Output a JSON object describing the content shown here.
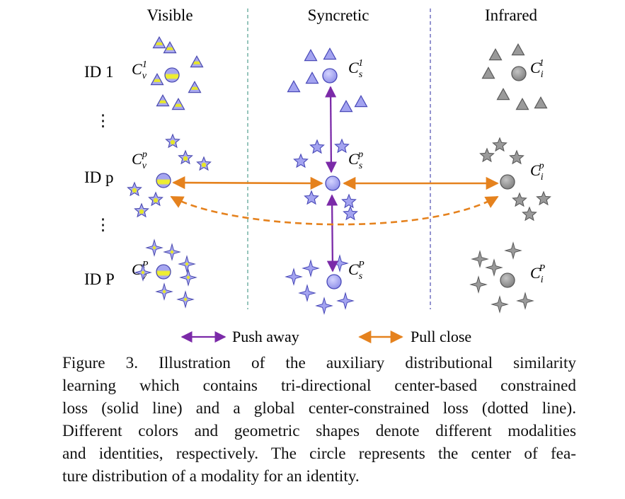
{
  "columns": {
    "visible": "Visible",
    "syncretic": "Syncretic",
    "infrared": "Infrared"
  },
  "rows": {
    "id_1": "ID 1",
    "id_p": "ID p",
    "id_P": "ID P",
    "ellipsis": "⋮"
  },
  "centers": {
    "v1": {
      "base": "C",
      "sup": "1",
      "sub": "v"
    },
    "s1": {
      "base": "C",
      "sup": "1",
      "sub": "s"
    },
    "i1": {
      "base": "C",
      "sup": "1",
      "sub": "i"
    },
    "vp": {
      "base": "C",
      "sup": "p",
      "sub": "v"
    },
    "sp": {
      "base": "C",
      "sup": "p",
      "sub": "s"
    },
    "ip": {
      "base": "C",
      "sup": "p",
      "sub": "i"
    },
    "vP": {
      "base": "C",
      "sup": "P",
      "sub": "v"
    },
    "sP": {
      "base": "C",
      "sup": "P",
      "sub": "s"
    },
    "iP": {
      "base": "C",
      "sup": "P",
      "sub": "i"
    }
  },
  "legend": {
    "push": "Push away",
    "pull": "Pull close"
  },
  "colors": {
    "visible_fill": "#a9a9ee",
    "visible_accent": "#e6e62a",
    "visible_stroke": "#4b4bb0",
    "syncretic_fill": "#a3a3f0",
    "syncretic_stroke": "#4848b8",
    "infrared_fill": "#9a9a9a",
    "infrared_stroke": "#5a5a5a",
    "push_arrow": "#7b2aa8",
    "pull_arrow": "#e5821e",
    "divider_1": "#2e8b7a",
    "divider_2": "#2a2aa0"
  },
  "caption": {
    "lines": [
      "Figure 3. Illustration of the auxiliary distributional similarity",
      "learning which contains tri-directional center-based constrained",
      "loss (solid line) and a global center-constrained loss (dotted line).",
      "Different colors and geometric shapes denote different modalities",
      "and identities, respectively. The circle represents the center of fea-",
      "ture distribution of a modality for an identity."
    ]
  }
}
